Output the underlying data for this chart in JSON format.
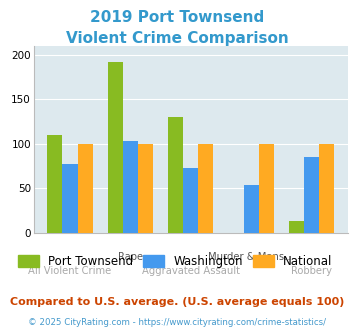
{
  "title_line1": "2019 Port Townsend",
  "title_line2": "Violent Crime Comparison",
  "title_color": "#3399cc",
  "groups": [
    {
      "label": "All Violent Crime",
      "pt": 110,
      "wa": 77,
      "nat": 100
    },
    {
      "label": "Rape",
      "pt": 192,
      "wa": 103,
      "nat": 100
    },
    {
      "label": "Aggravated Assault",
      "pt": 130,
      "wa": 73,
      "nat": 100
    },
    {
      "label": "Murder & Mans...",
      "pt": 0,
      "wa": 54,
      "nat": 100
    },
    {
      "label": "Robbery",
      "pt": 13,
      "wa": 85,
      "nat": 100
    }
  ],
  "top_labels": [
    "",
    "Rape",
    "",
    "Murder & Mans...",
    ""
  ],
  "bot_labels": [
    "All Violent Crime",
    "",
    "Aggravated Assault",
    "",
    "Robbery"
  ],
  "color_pt": "#88bb22",
  "color_wa": "#4499ee",
  "color_nat": "#ffaa22",
  "ylim": [
    0,
    210
  ],
  "yticks": [
    0,
    50,
    100,
    150,
    200
  ],
  "legend_labels": [
    "Port Townsend",
    "Washington",
    "National"
  ],
  "footnote1": "Compared to U.S. average. (U.S. average equals 100)",
  "footnote2": "© 2025 CityRating.com - https://www.cityrating.com/crime-statistics/",
  "footnote1_color": "#cc4400",
  "footnote2_color": "#4499cc",
  "bg_color": "#dde9ee",
  "bar_width": 0.25
}
